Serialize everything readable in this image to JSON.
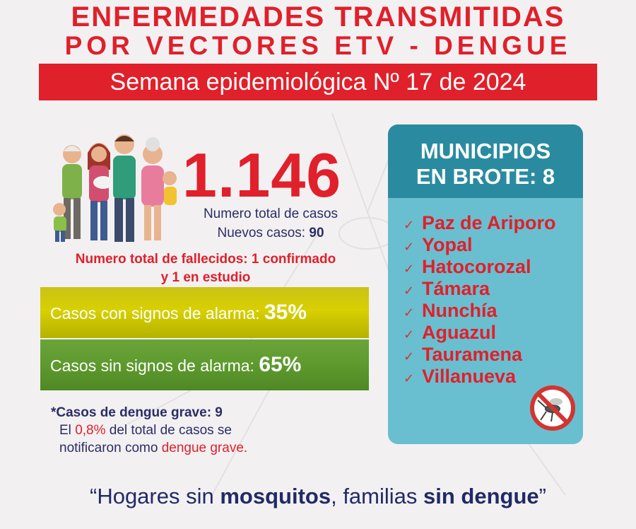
{
  "header": {
    "title_line1": "ENFERMEDADES TRANSMITIDAS",
    "title_line2": "POR VECTORES ETV - DENGUE",
    "week_banner": "Semana epidemiológica Nº 17 de 2024"
  },
  "stats": {
    "total_cases": "1.146",
    "total_cases_label": "Numero total de casos",
    "new_cases_label": "Nuevos casos:",
    "new_cases_value": "90",
    "deaths_line1": "Numero total de fallecidos: 1 confirmado",
    "deaths_line2": "y 1 en estudio"
  },
  "alarm": {
    "with_signs_label": "Casos con signos de alarma:",
    "with_signs_value": "35%",
    "with_signs_color": "#d4cc00",
    "without_signs_label": "Casos sin signos de alarma:",
    "without_signs_value": "65%",
    "without_signs_color": "#5d9a2e"
  },
  "severe": {
    "line1": "*Casos de dengue grave: 9",
    "line2_prefix": "El",
    "line2_highlight": "0,8%",
    "line2_suffix": "del total de casos se",
    "line3_prefix": "notificaron como",
    "line3_highlight": "dengue grave."
  },
  "municipalities": {
    "title_line1": "MUNICIPIOS",
    "title_line2": "EN BROTE: 8",
    "items": [
      "Paz de Ariporo",
      "Yopal",
      "Hatocorozal",
      "Támara",
      "Nunchía",
      "Aguazul",
      "Tauramena",
      "Villanueva"
    ],
    "check_icon": "checkmark-icon",
    "badge_icon": "no-mosquito-icon"
  },
  "slogan": {
    "open_quote": "“",
    "part1": "Hogares sin",
    "part2": "mosquitos",
    "part3": ", familias",
    "part4": "sin dengue",
    "close_quote": "”"
  },
  "colors": {
    "brand_red": "#e0202a",
    "navy": "#2b2d66",
    "teal_dark": "#2a8ba0",
    "teal_light": "#69bfd0"
  }
}
